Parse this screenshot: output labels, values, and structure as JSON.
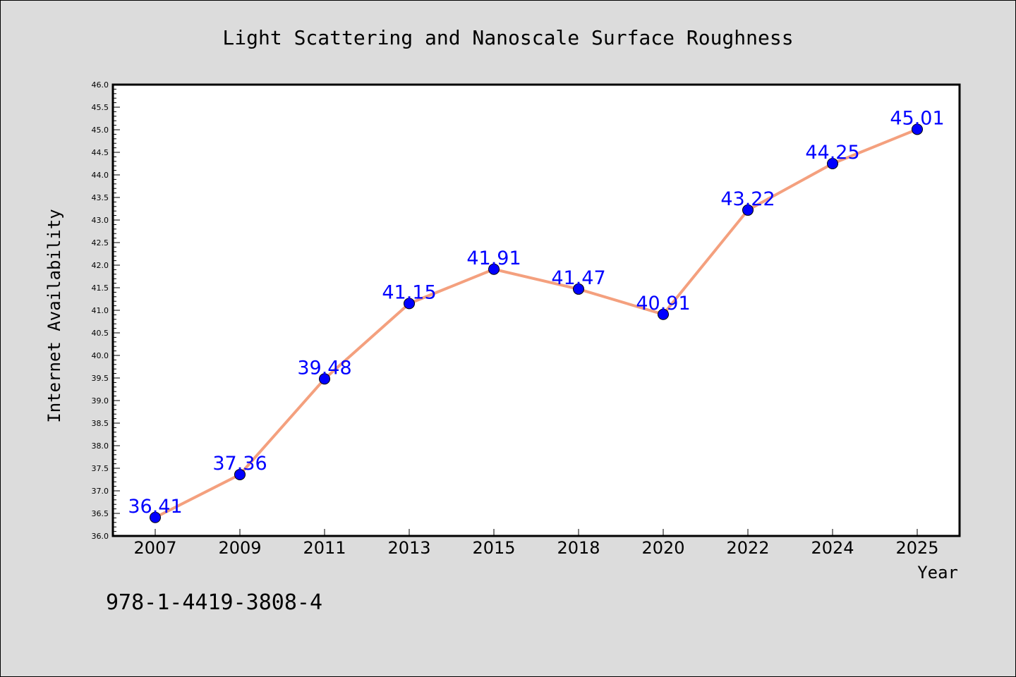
{
  "chart_data": {
    "type": "line",
    "title": "Light Scattering and Nanoscale Surface Roughness",
    "xlabel": "Year",
    "ylabel": "Internet Availability",
    "categories": [
      "2007",
      "2009",
      "2011",
      "2013",
      "2015",
      "2018",
      "2020",
      "2022",
      "2024",
      "2025"
    ],
    "series": [
      {
        "values": [
          36.41,
          37.36,
          39.48,
          41.15,
          41.91,
          41.47,
          40.91,
          43.22,
          44.25,
          45.01
        ],
        "data_labels": [
          "36.41",
          "37.36",
          "39.48",
          "41.15",
          "41.91",
          "41.47",
          "40.91",
          "43.22",
          "44.25",
          "45.01"
        ],
        "line_color": "#f4a07e",
        "marker_color": "#0000ff",
        "label_color": "#0000ff"
      }
    ],
    "ylim": [
      36.0,
      46.0
    ],
    "yticks": [
      "36.0",
      "36.5",
      "37.0",
      "37.5",
      "38.0",
      "38.5",
      "39.0",
      "39.5",
      "40.0",
      "40.5",
      "41.0",
      "41.5",
      "42.0",
      "42.5",
      "43.0",
      "43.5",
      "44.0",
      "44.5",
      "45.0",
      "45.5",
      "46.0"
    ],
    "grid": false,
    "legend": "none"
  },
  "footer_text": "978-1-4419-3808-4",
  "colors": {
    "background": "#dcdcdc",
    "plot_background": "#ffffff",
    "axis": "#000000"
  }
}
